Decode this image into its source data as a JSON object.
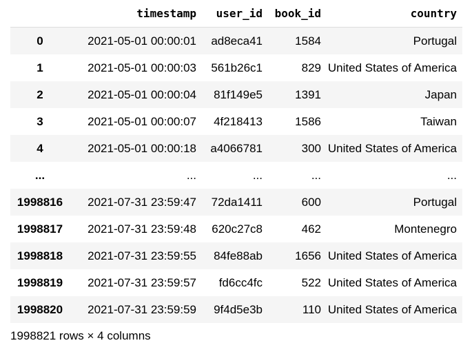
{
  "table": {
    "index_header": "",
    "columns": [
      "timestamp",
      "user_id",
      "book_id",
      "country"
    ],
    "rows": [
      {
        "index": "0",
        "cells": [
          "2021-05-01 00:00:01",
          "ad8eca41",
          "1584",
          "Portugal"
        ]
      },
      {
        "index": "1",
        "cells": [
          "2021-05-01 00:00:03",
          "561b26c1",
          "829",
          "United States of America"
        ]
      },
      {
        "index": "2",
        "cells": [
          "2021-05-01 00:00:04",
          "81f149e5",
          "1391",
          "Japan"
        ]
      },
      {
        "index": "3",
        "cells": [
          "2021-05-01 00:00:07",
          "4f218413",
          "1586",
          "Taiwan"
        ]
      },
      {
        "index": "4",
        "cells": [
          "2021-05-01 00:00:18",
          "a4066781",
          "300",
          "United States of America"
        ]
      },
      {
        "index": "...",
        "cells": [
          "...",
          "...",
          "...",
          "..."
        ]
      },
      {
        "index": "1998816",
        "cells": [
          "2021-07-31 23:59:47",
          "72da1411",
          "600",
          "Portugal"
        ]
      },
      {
        "index": "1998817",
        "cells": [
          "2021-07-31 23:59:48",
          "620c27c8",
          "462",
          "Montenegro"
        ]
      },
      {
        "index": "1998818",
        "cells": [
          "2021-07-31 23:59:55",
          "84fe88ab",
          "1656",
          "United States of America"
        ]
      },
      {
        "index": "1998819",
        "cells": [
          "2021-07-31 23:59:57",
          "fd6cc4fc",
          "522",
          "United States of America"
        ]
      },
      {
        "index": "1998820",
        "cells": [
          "2021-07-31 23:59:59",
          "9f4d5e3b",
          "110",
          "United States of America"
        ]
      }
    ]
  },
  "footer": {
    "shape_text": "1998821 rows × 4 columns"
  },
  "colors": {
    "stripe": "#f5f5f5",
    "header_rule": "#dddddd",
    "text": "#000000"
  }
}
